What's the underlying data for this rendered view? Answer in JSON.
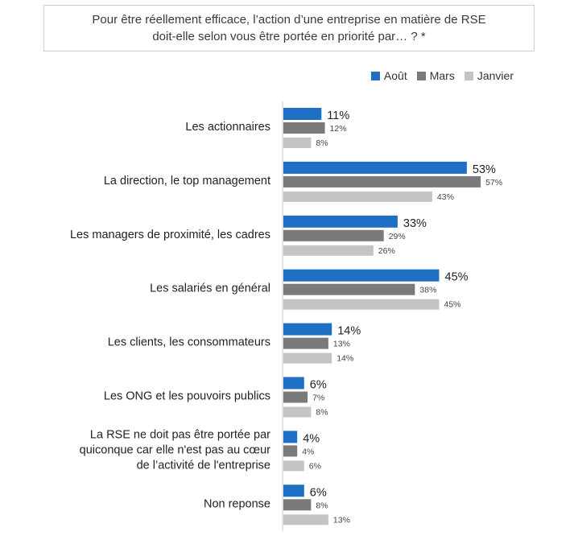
{
  "question": {
    "line1": "Pour être réellement efficace, l’action d’une entreprise en matière de RSE",
    "line2": "doit-elle selon vous être portée en priorité par… ? *"
  },
  "colors": {
    "aout": "#1f6fc5",
    "mars": "#7a7a7a",
    "janvier": "#c4c4c4",
    "axis": "#c8c8c8"
  },
  "chart_data": {
    "type": "bar",
    "orientation": "horizontal",
    "title": "Pour être réellement efficace, l’action d’une entreprise en matière de RSE doit-elle selon vous être portée en priorité par… ? *",
    "categories": [
      [
        "Les actionnaires"
      ],
      [
        "La direction, le top management"
      ],
      [
        "Les managers de proximité, les cadres"
      ],
      [
        "Les salariés en général"
      ],
      [
        "Les clients, les consommateurs"
      ],
      [
        "Les ONG et les pouvoirs publics"
      ],
      [
        "La RSE ne doit pas être portée par",
        "quiconque car elle n'est pas au cœur",
        "de l’activité de l'entreprise"
      ],
      [
        "Non reponse"
      ]
    ],
    "series": [
      {
        "name": "Août",
        "values": [
          11,
          53,
          33,
          45,
          14,
          6,
          4,
          6
        ]
      },
      {
        "name": "Mars",
        "values": [
          12,
          57,
          29,
          38,
          13,
          7,
          4,
          8
        ]
      },
      {
        "name": "Janvier",
        "values": [
          8,
          43,
          26,
          45,
          14,
          8,
          6,
          13
        ]
      }
    ],
    "value_suffix": "%",
    "xlim": [
      0,
      100
    ],
    "legend_position": "top-right"
  }
}
